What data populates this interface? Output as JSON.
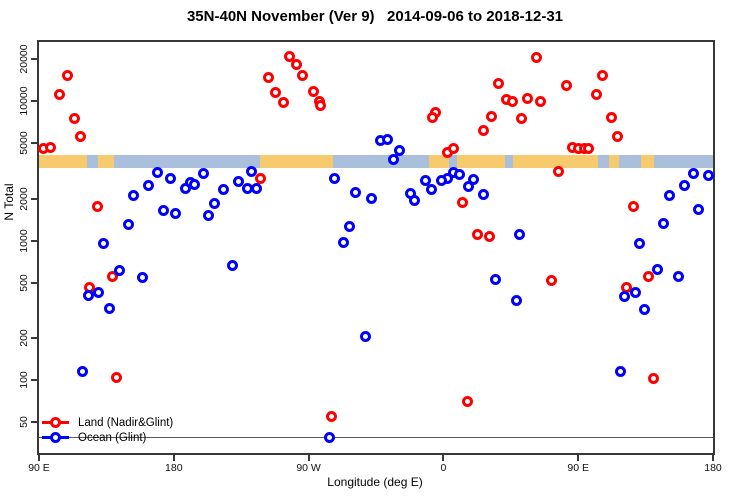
{
  "title": "35N-40N November (Ver 9)   2014-09-06 to 2018-12-31",
  "chart_data": {
    "type": "scatter",
    "title": "35N-40N November (Ver 9)   2014-09-06 to 2018-12-31",
    "xlabel": "Longitude (deg E)",
    "ylabel": "N Total",
    "x_axis": {
      "lim": [
        90,
        540
      ],
      "note": "longitude axis wraps eastward: 90E to 180 to 90W to 0 to 90E to 180",
      "ticks": [
        {
          "t": 90,
          "label": "90 E"
        },
        {
          "t": 180,
          "label": "180"
        },
        {
          "t": 270,
          "label": "90 W"
        },
        {
          "t": 360,
          "label": "0"
        },
        {
          "t": 450,
          "label": "90 E"
        },
        {
          "t": 540,
          "label": "180"
        }
      ]
    },
    "y_axis": {
      "scale": "log",
      "lim": [
        30,
        26500
      ],
      "ticks": [
        50,
        100,
        200,
        500,
        1000,
        2000,
        5000,
        10000,
        20000
      ]
    },
    "map_band": {
      "n_top": 4100,
      "n_bottom": 3310,
      "land_color": "#f7ca6e",
      "ocean_color": "#aabfdc",
      "segments": [
        {
          "from": 90,
          "to": 122,
          "type": "land"
        },
        {
          "from": 122,
          "to": 129.3,
          "type": "ocean"
        },
        {
          "from": 129.3,
          "to": 140,
          "type": "land"
        },
        {
          "from": 140,
          "to": 237.3,
          "type": "ocean"
        },
        {
          "from": 237.3,
          "to": 286,
          "type": "land"
        },
        {
          "from": 286,
          "to": 350.7,
          "type": "ocean"
        },
        {
          "from": 350.7,
          "to": 364,
          "type": "land"
        },
        {
          "from": 364,
          "to": 369.3,
          "type": "ocean"
        },
        {
          "from": 369.3,
          "to": 401.3,
          "type": "land"
        },
        {
          "from": 401.3,
          "to": 406.7,
          "type": "ocean"
        },
        {
          "from": 406.7,
          "to": 463.3,
          "type": "land"
        },
        {
          "from": 463.3,
          "to": 470.7,
          "type": "ocean"
        },
        {
          "from": 470.7,
          "to": 477.3,
          "type": "land"
        },
        {
          "from": 477.3,
          "to": 492,
          "type": "ocean"
        },
        {
          "from": 492,
          "to": 500.7,
          "type": "land"
        },
        {
          "from": 500.7,
          "to": 540,
          "type": "ocean"
        }
      ]
    },
    "threshold_line": {
      "n": 39,
      "color": "#5a5a5a"
    },
    "legend": {
      "position": "bottom-left"
    },
    "series": [
      {
        "name": "Land (Nadir&Glint)",
        "color": "#ff0000",
        "points": [
          [
            109,
            15300
          ],
          [
            104,
            11100
          ],
          [
            114,
            7550
          ],
          [
            118,
            5580
          ],
          [
            93,
            4580
          ],
          [
            98,
            4660
          ],
          [
            129,
            1740
          ],
          [
            257,
            20900
          ],
          [
            262,
            18300
          ],
          [
            266,
            15300
          ],
          [
            243,
            14700
          ],
          [
            248,
            11600
          ],
          [
            253,
            9690
          ],
          [
            273,
            11800
          ],
          [
            277,
            9950
          ],
          [
            278,
            9310
          ],
          [
            238,
            2805
          ],
          [
            422,
            20500
          ],
          [
            397,
            13300
          ],
          [
            402,
            10200
          ],
          [
            406,
            9990
          ],
          [
            416,
            10400
          ],
          [
            425,
            9860
          ],
          [
            355,
            8310
          ],
          [
            353,
            7560
          ],
          [
            392,
            7780
          ],
          [
            412,
            7470
          ],
          [
            387,
            6130
          ],
          [
            363,
            4280
          ],
          [
            367,
            4600
          ],
          [
            373,
            1860
          ],
          [
            383,
            1100
          ],
          [
            391,
            1070
          ],
          [
            466,
            15300
          ],
          [
            442,
            12850
          ],
          [
            462,
            11100
          ],
          [
            472,
            7600
          ],
          [
            476,
            5580
          ],
          [
            446,
            4680
          ],
          [
            450,
            4600
          ],
          [
            454,
            4600
          ],
          [
            457,
            4600
          ],
          [
            437,
            3130
          ],
          [
            487,
            1740
          ],
          [
            139,
            556
          ],
          [
            124,
            458
          ],
          [
            142,
            105
          ],
          [
            285,
            55
          ],
          [
            376,
            70
          ],
          [
            432,
            513
          ],
          [
            497,
            556
          ],
          [
            482,
            458
          ],
          [
            500,
            103
          ]
        ]
      },
      {
        "name": "Ocean (Glint)",
        "color": "#0000ff",
        "points": [
          [
            169,
            3050
          ],
          [
            178,
            2805
          ],
          [
            163,
            2490
          ],
          [
            153,
            2110
          ],
          [
            188,
            2350
          ],
          [
            191,
            2620
          ],
          [
            194,
            2530
          ],
          [
            173,
            1645
          ],
          [
            181,
            1575
          ],
          [
            150,
            1300
          ],
          [
            133,
            950
          ],
          [
            200,
            3040
          ],
          [
            232,
            3130
          ],
          [
            223,
            2655
          ],
          [
            229,
            2375
          ],
          [
            235,
            2350
          ],
          [
            213,
            2310
          ],
          [
            207,
            1840
          ],
          [
            203,
            1510
          ],
          [
            287,
            2805
          ],
          [
            301,
            2200
          ],
          [
            312,
            2000
          ],
          [
            297,
            1265
          ],
          [
            293,
            963
          ],
          [
            318,
            5210
          ],
          [
            323,
            5260
          ],
          [
            331,
            4450
          ],
          [
            327,
            3820
          ],
          [
            367,
            3050
          ],
          [
            371,
            2980
          ],
          [
            380,
            2720
          ],
          [
            363,
            2780
          ],
          [
            359,
            2690
          ],
          [
            348,
            2710
          ],
          [
            352,
            2310
          ],
          [
            377,
            2460
          ],
          [
            338,
            2180
          ],
          [
            341,
            1930
          ],
          [
            387,
            2140
          ],
          [
            411,
            1100
          ],
          [
            527,
            3040
          ],
          [
            537,
            2920
          ],
          [
            521,
            2500
          ],
          [
            511,
            2120
          ],
          [
            530,
            1660
          ],
          [
            507,
            1330
          ],
          [
            491,
            960
          ],
          [
            144,
            605
          ],
          [
            159,
            543
          ],
          [
            123,
            406
          ],
          [
            130,
            422
          ],
          [
            137,
            324
          ],
          [
            119,
            115
          ],
          [
            219,
            665
          ],
          [
            308,
            204
          ],
          [
            284,
            39
          ],
          [
            395,
            523
          ],
          [
            409,
            372
          ],
          [
            503,
            620
          ],
          [
            517,
            548
          ],
          [
            481,
            400
          ],
          [
            488,
            423
          ],
          [
            494,
            318
          ],
          [
            478,
            115
          ]
        ]
      }
    ]
  }
}
